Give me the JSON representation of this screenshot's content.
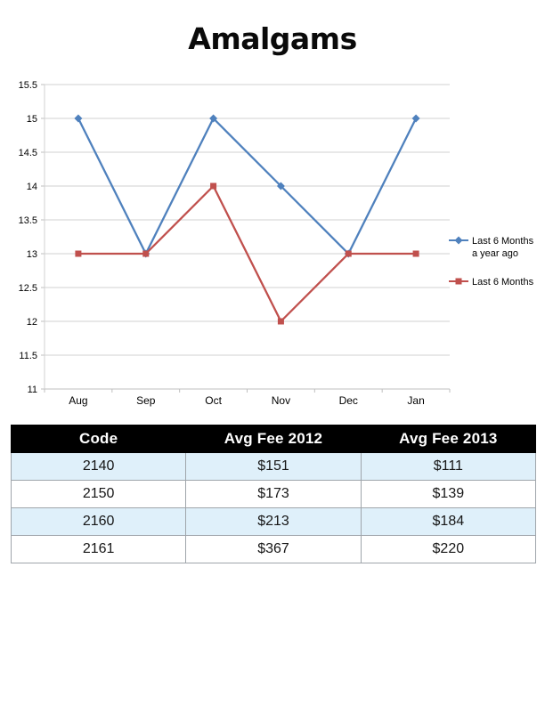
{
  "title": "Amalgams",
  "chart_data": {
    "type": "line",
    "categories": [
      "Aug",
      "Sep",
      "Oct",
      "Nov",
      "Dec",
      "Jan"
    ],
    "series": [
      {
        "name": "Last 6 Months a year ago",
        "legend_lines": [
          "Last 6 Months",
          "a year ago"
        ],
        "values": [
          15,
          13,
          15,
          14,
          13,
          15
        ],
        "color": "#4F81BD",
        "marker": "diamond"
      },
      {
        "name": "Last 6 Months",
        "legend_lines": [
          "Last 6 Months"
        ],
        "values": [
          13,
          13,
          14,
          12,
          13,
          13
        ],
        "color": "#C0504D",
        "marker": "square"
      }
    ],
    "title": "",
    "xlabel": "",
    "ylabel": "",
    "ylim": [
      11,
      15.5
    ],
    "ytick_step": 0.5,
    "ytick_labels": [
      "11",
      "11.5",
      "12",
      "12.5",
      "13",
      "13.5",
      "14",
      "14.5",
      "15",
      "15.5"
    ],
    "grid": true,
    "legend_position": "right",
    "gridline_color": "#D2D2D2",
    "axis_color": "#BFBFBF",
    "label_color": "#000000",
    "label_font_size": 11,
    "category_font_size": 12
  },
  "table": {
    "headers": [
      "Code",
      "Avg Fee 2012",
      "Avg Fee 2013"
    ],
    "rows": [
      [
        "2140",
        "$151",
        "$111"
      ],
      [
        "2150",
        "$173",
        "$139"
      ],
      [
        "2160",
        "$213",
        "$184"
      ],
      [
        "2161",
        "$367",
        "$220"
      ]
    ],
    "header_bg": "#000000",
    "header_color": "#FFFFFF",
    "alt_row_bg": "#DFF0FA",
    "border_color": "#9FA5AB"
  }
}
